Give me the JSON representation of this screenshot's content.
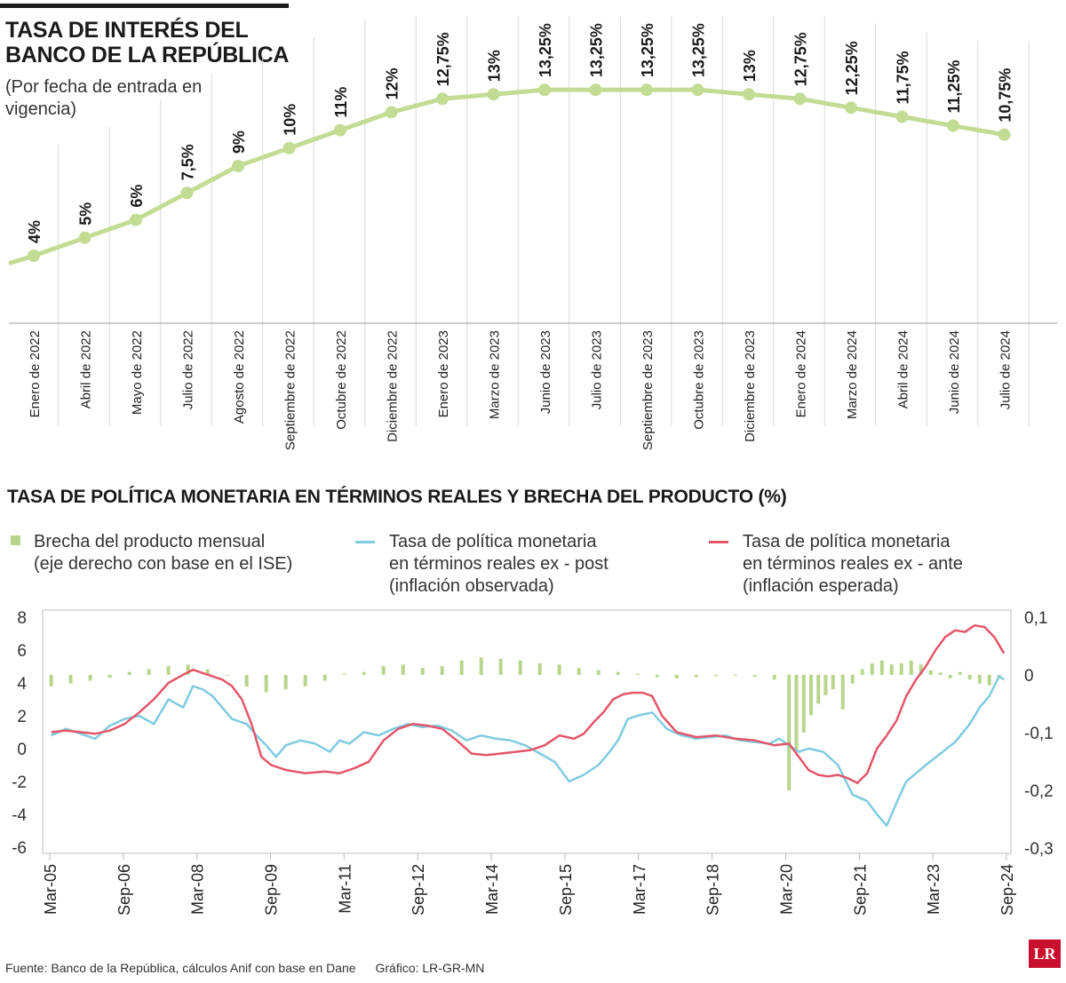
{
  "header": {
    "title": "TASA DE INTERÉS DEL BANCO DE LA REPÚBLICA",
    "subtitle": "(Por fecha de entrada en vigencia)"
  },
  "colors": {
    "green": "#b9d58b",
    "green_line": "#c3dc94",
    "blue": "#7fcbe0",
    "red": "#e2566a",
    "text": "#1a1a1a"
  },
  "chart_data": [
    {
      "type": "line",
      "title": "TASA DE INTERÉS DEL BANCO DE LA REPÚBLICA",
      "subtitle": "(Por fecha de entrada en vigencia)",
      "categories": [
        "Enero de 2022",
        "Abril de 2022",
        "Mayo de 2022",
        "Julio de 2022",
        "Agosto de 2022",
        "Septiembre de 2022",
        "Octubre de 2022",
        "Diciembre de 2022",
        "Enero de 2023",
        "Marzo de 2023",
        "Junio de 2023",
        "Julio de 2023",
        "Septiembre de 2023",
        "Octubre de 2023",
        "Diciembre de 2023",
        "Enero de 2024",
        "Marzo de 2024",
        "Abril de 2024",
        "Junio de 2024",
        "Julio de 2024"
      ],
      "values": [
        4,
        5,
        6,
        7.5,
        9,
        10,
        11,
        12,
        12.75,
        13,
        13.25,
        13.25,
        13.25,
        13.25,
        13,
        12.75,
        12.25,
        11.75,
        11.25,
        10.75
      ],
      "labels": [
        "4%",
        "5%",
        "6%",
        "7,5%",
        "9%",
        "10%",
        "11%",
        "12%",
        "12,75%",
        "13%",
        "13,25%",
        "13,25%",
        "13,25%",
        "13,25%",
        "13%",
        "12,75%",
        "12,25%",
        "11,75%",
        "11,25%",
        "10,75%"
      ],
      "ylim": [
        0,
        14
      ],
      "grid": "vertical"
    },
    {
      "type": "line",
      "title": "TASA DE POLÍTICA MONETARIA EN TÉRMINOS REALES Y BRECHA DEL PRODUCTO (%)",
      "x_ticks": [
        "Mar-05",
        "Sep-06",
        "Mar-08",
        "Sep-09",
        "Mar-11",
        "Sep-12",
        "Mar-14",
        "Sep-15",
        "Mar-17",
        "Sep-18",
        "Mar-20",
        "Sep-21",
        "Mar-23",
        "Sep-24"
      ],
      "left_ticks": [
        "8",
        "6",
        "4",
        "2",
        "0",
        "-2",
        "-4",
        "-6"
      ],
      "right_ticks": [
        "0,1",
        "0",
        "-0,1",
        "-0,2",
        "-0,3"
      ],
      "left_ylim": [
        -6,
        8
      ],
      "right_ylim": [
        -0.3,
        0.1
      ],
      "x_range": [
        2005.17,
        2024.75
      ],
      "series": [
        {
          "name": "Brecha del producto mensual (eje derecho con base en el ISE)",
          "kind": "bar",
          "axis": "right",
          "x": [
            2005.2,
            2005.6,
            2006.0,
            2006.4,
            2006.8,
            2007.2,
            2007.6,
            2008.0,
            2008.4,
            2008.8,
            2009.2,
            2009.6,
            2010.0,
            2010.4,
            2010.8,
            2011.2,
            2011.6,
            2012.0,
            2012.4,
            2012.8,
            2013.2,
            2013.6,
            2014.0,
            2014.4,
            2014.8,
            2015.2,
            2015.6,
            2016.0,
            2016.4,
            2016.8,
            2017.2,
            2017.6,
            2018.0,
            2018.4,
            2018.8,
            2019.2,
            2019.6,
            2020.0,
            2020.3,
            2020.45,
            2020.6,
            2020.75,
            2020.9,
            2021.05,
            2021.2,
            2021.4,
            2021.6,
            2021.8,
            2022.0,
            2022.2,
            2022.4,
            2022.6,
            2022.8,
            2023.0,
            2023.2,
            2023.4,
            2023.6,
            2023.8,
            2024.0,
            2024.2,
            2024.4,
            2024.6
          ],
          "values": [
            -0.02,
            -0.015,
            -0.01,
            -0.005,
            0.005,
            0.01,
            0.015,
            0.018,
            0.01,
            0.0,
            -0.02,
            -0.03,
            -0.025,
            -0.02,
            -0.01,
            0.002,
            0.005,
            0.015,
            0.018,
            0.012,
            0.015,
            0.025,
            0.03,
            0.028,
            0.025,
            0.02,
            0.018,
            0.012,
            0.008,
            0.005,
            0.002,
            -0.004,
            -0.006,
            -0.004,
            -0.002,
            0.0,
            -0.003,
            -0.008,
            -0.2,
            -0.13,
            -0.1,
            -0.07,
            -0.05,
            -0.035,
            -0.025,
            -0.06,
            -0.015,
            0.01,
            0.02,
            0.025,
            0.018,
            0.02,
            0.025,
            0.018,
            0.008,
            0.004,
            -0.006,
            0.005,
            -0.008,
            -0.015,
            -0.018,
            -0.005
          ]
        },
        {
          "name": "Tasa de política monetaria en términos reales ex - post (inflación observada)",
          "kind": "line",
          "axis": "left",
          "x": [
            2005.2,
            2005.5,
            2005.8,
            2006.1,
            2006.4,
            2006.7,
            2007.0,
            2007.3,
            2007.6,
            2007.9,
            2008.1,
            2008.3,
            2008.5,
            2008.7,
            2008.9,
            2009.2,
            2009.4,
            2009.6,
            2009.8,
            2010.0,
            2010.3,
            2010.6,
            2010.9,
            2011.1,
            2011.3,
            2011.6,
            2011.9,
            2012.2,
            2012.5,
            2012.8,
            2013.1,
            2013.4,
            2013.7,
            2014.0,
            2014.3,
            2014.6,
            2014.9,
            2015.2,
            2015.5,
            2015.8,
            2016.1,
            2016.4,
            2016.6,
            2016.8,
            2017.0,
            2017.2,
            2017.5,
            2017.8,
            2018.1,
            2018.4,
            2018.7,
            2019.0,
            2019.3,
            2019.6,
            2019.9,
            2020.1,
            2020.3,
            2020.5,
            2020.7,
            2021.0,
            2021.3,
            2021.6,
            2021.9,
            2022.1,
            2022.3,
            2022.5,
            2022.7,
            2022.9,
            2023.1,
            2023.4,
            2023.7,
            2024.0,
            2024.2,
            2024.4,
            2024.6,
            2024.7
          ],
          "values": [
            0.8,
            1.2,
            0.9,
            0.6,
            1.4,
            1.8,
            2.0,
            1.5,
            3.0,
            2.5,
            3.8,
            3.6,
            3.2,
            2.5,
            1.8,
            1.5,
            0.8,
            0.2,
            -0.5,
            0.2,
            0.5,
            0.3,
            -0.2,
            0.5,
            0.3,
            1.0,
            0.8,
            1.2,
            1.5,
            1.3,
            1.4,
            1.1,
            0.5,
            0.8,
            0.6,
            0.5,
            0.2,
            -0.3,
            -0.8,
            -2.0,
            -1.6,
            -1.0,
            -0.3,
            0.5,
            1.8,
            2.0,
            2.2,
            1.2,
            0.8,
            0.6,
            0.7,
            0.8,
            0.5,
            0.4,
            0.3,
            0.6,
            0.2,
            -0.2,
            0.0,
            -0.2,
            -1.0,
            -2.8,
            -3.2,
            -4.0,
            -4.7,
            -3.3,
            -2.0,
            -1.5,
            -1.0,
            -0.3,
            0.4,
            1.5,
            2.5,
            3.2,
            4.4,
            4.2
          ]
        },
        {
          "name": "Tasa de política monetaria en términos reales ex - ante (inflación esperada)",
          "kind": "line",
          "axis": "left",
          "x": [
            2005.2,
            2005.5,
            2005.8,
            2006.1,
            2006.4,
            2006.7,
            2007.0,
            2007.3,
            2007.6,
            2007.9,
            2008.1,
            2008.4,
            2008.7,
            2008.9,
            2009.1,
            2009.3,
            2009.5,
            2009.7,
            2010.0,
            2010.4,
            2010.8,
            2011.1,
            2011.4,
            2011.7,
            2012.0,
            2012.3,
            2012.6,
            2012.9,
            2013.2,
            2013.5,
            2013.8,
            2014.1,
            2014.4,
            2014.7,
            2015.0,
            2015.3,
            2015.6,
            2015.9,
            2016.1,
            2016.3,
            2016.5,
            2016.7,
            2016.9,
            2017.1,
            2017.3,
            2017.5,
            2017.7,
            2018.0,
            2018.4,
            2018.8,
            2019.2,
            2019.6,
            2020.0,
            2020.3,
            2020.5,
            2020.7,
            2020.9,
            2021.1,
            2021.3,
            2021.5,
            2021.7,
            2021.9,
            2022.1,
            2022.3,
            2022.5,
            2022.7,
            2022.9,
            2023.1,
            2023.3,
            2023.5,
            2023.7,
            2023.9,
            2024.1,
            2024.3,
            2024.5,
            2024.7
          ],
          "values": [
            1.0,
            1.1,
            1.0,
            0.9,
            1.1,
            1.5,
            2.2,
            3.0,
            4.0,
            4.5,
            4.8,
            4.5,
            4.2,
            3.8,
            3.0,
            1.5,
            -0.5,
            -1.0,
            -1.3,
            -1.5,
            -1.4,
            -1.5,
            -1.2,
            -0.8,
            0.5,
            1.2,
            1.5,
            1.4,
            1.2,
            0.5,
            -0.3,
            -0.4,
            -0.3,
            -0.2,
            -0.1,
            0.2,
            0.8,
            0.6,
            0.9,
            1.6,
            2.2,
            3.0,
            3.3,
            3.4,
            3.4,
            3.2,
            2.0,
            1.0,
            0.7,
            0.8,
            0.6,
            0.5,
            0.2,
            0.3,
            -0.5,
            -1.3,
            -1.6,
            -1.7,
            -1.6,
            -1.8,
            -2.1,
            -1.5,
            0.0,
            0.8,
            1.7,
            3.2,
            4.2,
            5.0,
            6.0,
            6.8,
            7.2,
            7.1,
            7.5,
            7.4,
            6.8,
            5.8
          ]
        }
      ]
    }
  ],
  "legend": [
    {
      "name": "Brecha del producto mensual",
      "line2": "(eje derecho con base en el ISE)",
      "line3": ""
    },
    {
      "name": "Tasa de política monetaria",
      "line2": "en términos reales ex - post",
      "line3": "(inflación observada)"
    },
    {
      "name": "Tasa de política monetaria",
      "line2": "en términos reales ex - ante",
      "line3": "(inflación esperada)"
    }
  ],
  "footer": {
    "source": "Fuente: Banco de la República, cálculos Anif con base en Dane",
    "credit": "Gráfico: LR-GR-MN",
    "logo": "LR"
  }
}
